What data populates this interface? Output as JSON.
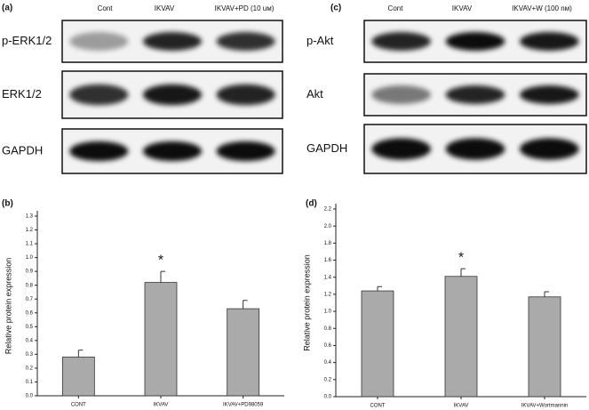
{
  "blots": [
    {
      "label": "(a)",
      "columns": [
        "Cont",
        "IKVAV",
        "IKVAV+PD (10 uм)"
      ],
      "rows": [
        "p-ERK1/2",
        "ERK1/2",
        "GAPDH"
      ]
    },
    {
      "label": "(c)",
      "columns": [
        "Cont",
        "IKVAV",
        "IKVAV+W (100 nм)"
      ],
      "rows": [
        "p-Akt",
        "Akt",
        "GAPDH"
      ]
    }
  ],
  "chart_data": [
    {
      "type": "bar",
      "panel_label": "(b)",
      "y_label": "Relative protein expression",
      "categories": [
        "CONT",
        "IKVAV",
        "IKVAV+PD98059"
      ],
      "values": [
        0.28,
        0.82,
        0.63
      ],
      "errors": [
        0.05,
        0.08,
        0.06
      ],
      "color": "#aaaaaa",
      "annotations": [
        {
          "text": "*",
          "category": "IKVAV"
        }
      ],
      "ylim": [
        0,
        1.3
      ],
      "yticks": [
        {
          "value": 0,
          "label": "0.0"
        },
        0.1,
        0.2,
        0.3,
        0.4,
        0.5,
        0.6,
        0.7,
        0.8,
        0.9,
        {
          "value": 1,
          "label": "1.0"
        },
        1.1,
        1.2,
        1.3
      ]
    },
    {
      "type": "bar",
      "panel_label": "(d)",
      "y_label": "Relative protein expression",
      "categories": [
        "CONT",
        "IKVAV",
        "IKVAV+Wortmannin"
      ],
      "values": [
        1.24,
        1.41,
        1.17
      ],
      "errors": [
        0.05,
        0.09,
        0.06
      ],
      "color": "#aaaaaa",
      "annotations": [
        {
          "text": "*",
          "category": "IKVAV"
        }
      ],
      "ylim": [
        0,
        2.2
      ],
      "yticks": [
        {
          "value": 0,
          "label": "0.0"
        },
        0.2,
        0.4,
        0.6,
        0.8,
        {
          "value": 1,
          "label": "1.0"
        },
        1.2,
        1.4,
        1.6,
        1.8,
        {
          "value": 2,
          "label": "2.0"
        },
        2.2
      ]
    }
  ]
}
